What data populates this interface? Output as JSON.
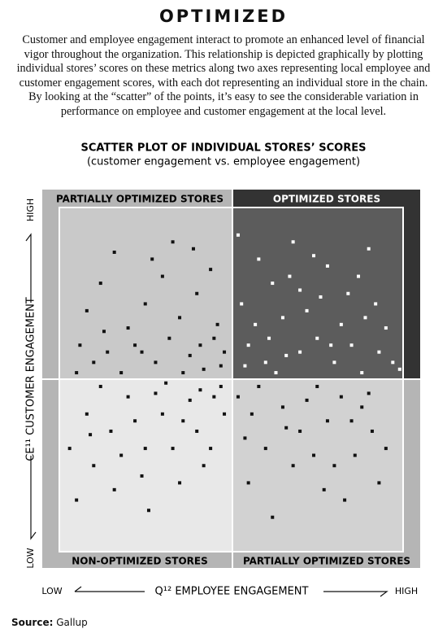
{
  "header": {
    "title": "OPTIMIZED",
    "body": "Customer and employee engagement interact to promote an enhanced level of financial vigor throughout the organization. This relationship is depicted graphically by plotting individual stores’ scores on these metrics along two axes representing local employee and customer engagement scores, with each dot representing an individual store in the chain. By looking at the “scatter” of the points, it’s easy to see the considerable variation in performance on employee and customer engagement at the local level."
  },
  "chart_data": {
    "type": "scatter",
    "title": "SCATTER PLOT OF INDIVIDUAL STORES’ SCORES",
    "subtitle": "(customer engagement vs. employee engagement)",
    "x_label": "Q¹² EMPLOYEE ENGAGEMENT",
    "x_low": "LOW",
    "x_high": "HIGH",
    "y_label": "CE¹¹ CUSTOMER ENGAGEMENT",
    "y_low": "LOW",
    "y_high": "HIGH",
    "quadrants": {
      "top_left": "PARTIALLY OPTIMIZED STORES",
      "top_right": "OPTIMIZED STORES",
      "bottom_left": "NON-OPTIMIZED STORES",
      "bottom_right": "PARTIALLY OPTIMIZED STORES"
    },
    "xlim": [
      0,
      100
    ],
    "ylim": [
      0,
      100
    ],
    "x": [
      16,
      8,
      12,
      20,
      25,
      30,
      35,
      40,
      45,
      48,
      6,
      10,
      14,
      18,
      22,
      28,
      32,
      38,
      42,
      46,
      33,
      39,
      44,
      27,
      24,
      36,
      41,
      47,
      5,
      13,
      52,
      58,
      62,
      68,
      72,
      78,
      84,
      90,
      95,
      55,
      60,
      65,
      70,
      75,
      80,
      85,
      88,
      92,
      97,
      53,
      57,
      63,
      67,
      74,
      82,
      87,
      93,
      99,
      76,
      61,
      70,
      79,
      89,
      54,
      66,
      5,
      10,
      15,
      20,
      25,
      30,
      35,
      40,
      45,
      48,
      8,
      12,
      18,
      22,
      28,
      33,
      38,
      42,
      47,
      3,
      16,
      26,
      36,
      44,
      9,
      31,
      24,
      41,
      52,
      56,
      60,
      65,
      70,
      75,
      80,
      85,
      90,
      95,
      55,
      62,
      68,
      72,
      78,
      83,
      88,
      93,
      58,
      66,
      74,
      82,
      91,
      54,
      77,
      86
    ],
    "series": [
      {
        "color": "#111111",
        "highlight_color": "#ffffff",
        "values": [
          87,
          70,
          78,
          65,
          72,
          80,
          68,
          75,
          62,
          58,
          60,
          55,
          58,
          52,
          60,
          55,
          62,
          57,
          53,
          66,
          90,
          88,
          82,
          85,
          58,
          52,
          60,
          54,
          52,
          64,
          92,
          85,
          78,
          90,
          70,
          83,
          75,
          88,
          65,
          60,
          55,
          68,
          58,
          62,
          55,
          60,
          52,
          72,
          55,
          72,
          66,
          52,
          80,
          86,
          66,
          80,
          58,
          53,
          74,
          62,
          76,
          60,
          68,
          54,
          57,
          15,
          25,
          35,
          45,
          30,
          40,
          20,
          35,
          45,
          40,
          40,
          48,
          28,
          38,
          46,
          30,
          44,
          25,
          48,
          30,
          18,
          12,
          38,
          30,
          34,
          49,
          22,
          47,
          45,
          40,
          30,
          42,
          35,
          48,
          25,
          38,
          46,
          30,
          20,
          10,
          25,
          44,
          38,
          15,
          42,
          20,
          48,
          36,
          28,
          45,
          35,
          33,
          18,
          28
        ]
      }
    ]
  },
  "source": {
    "label": "Source:",
    "text": "Gallup"
  }
}
